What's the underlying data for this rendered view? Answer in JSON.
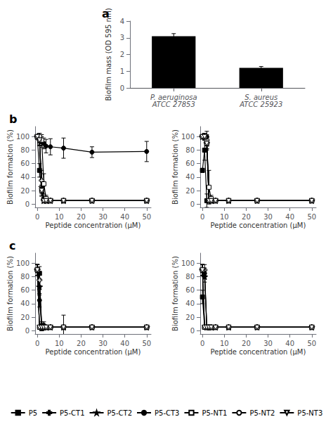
{
  "chart_data": [
    {
      "type": "bar",
      "title": "a",
      "categories": [
        "P. aeruginosa\nATCC 27853",
        "S. aureus\nATCC 25923"
      ],
      "values": [
        3.1,
        1.2
      ],
      "errors": [
        0.15,
        0.08
      ],
      "color": "#000000",
      "ylabel": "Biofilm mass (OD 595 nm)",
      "ylim": [
        0,
        4
      ],
      "yticks": [
        0,
        1,
        2,
        3,
        4
      ],
      "grid": false
    },
    {
      "type": "line",
      "title": "b",
      "x": [
        0,
        1,
        2,
        3,
        4,
        6,
        12,
        25,
        50
      ],
      "xlabel": "Peptide concentration (μM)",
      "ylabel": "Biofilm formation (%)",
      "xlim": [
        -1,
        52
      ],
      "xticks": [
        0,
        10,
        20,
        30,
        40,
        50
      ],
      "ylim": [
        -5,
        115
      ],
      "yticks": [
        0,
        20,
        40,
        60,
        80,
        100
      ],
      "grid": false,
      "series": [
        {
          "name": "P5",
          "color": "#000000",
          "marker": "square",
          "line_style": "solid",
          "values": [
            100,
            50,
            20,
            7,
            5,
            5,
            5,
            5,
            5
          ],
          "errors": [
            3,
            10,
            8,
            3,
            2,
            2,
            2,
            2,
            2
          ]
        },
        {
          "name": "P5-CT1",
          "color": "#000000",
          "marker": "open plus",
          "line_style": "solid",
          "values": [
            100,
            95,
            35,
            7,
            5,
            5,
            5,
            5,
            5
          ],
          "errors": [
            3,
            8,
            15,
            3,
            2,
            2,
            2,
            2,
            2
          ]
        },
        {
          "name": "P5-CT2",
          "color": "#000000",
          "marker": "star",
          "line_style": "solid",
          "values": [
            100,
            95,
            25,
            5,
            5,
            5,
            5,
            5,
            5
          ],
          "errors": [
            3,
            8,
            10,
            3,
            2,
            2,
            2,
            2,
            2
          ]
        },
        {
          "name": "P5-CT3",
          "color": "#000000",
          "marker": "circle",
          "line_style": "solid",
          "values": [
            100,
            100,
            92,
            90,
            86,
            85,
            83,
            77,
            78
          ],
          "errors": [
            3,
            5,
            8,
            8,
            10,
            12,
            15,
            8,
            15
          ]
        },
        {
          "name": "P5-NT1",
          "color": "#000000",
          "marker": "open square",
          "line_style": "solid",
          "values": [
            100,
            100,
            95,
            30,
            8,
            5,
            5,
            5,
            5
          ],
          "errors": [
            3,
            5,
            8,
            15,
            5,
            3,
            2,
            2,
            2
          ]
        },
        {
          "name": "P5-NT2",
          "color": "#000000",
          "marker": "open circle",
          "line_style": "solid",
          "values": [
            100,
            95,
            20,
            5,
            5,
            5,
            5,
            5,
            5
          ],
          "errors": [
            3,
            8,
            8,
            3,
            2,
            2,
            2,
            2,
            2
          ]
        },
        {
          "name": "P5-NT3",
          "color": "#000000",
          "marker": "open triangle-down",
          "line_style": "solid",
          "values": [
            100,
            95,
            20,
            5,
            5,
            5,
            5,
            5,
            5
          ],
          "errors": [
            3,
            8,
            8,
            3,
            2,
            2,
            2,
            2,
            2
          ]
        }
      ]
    },
    {
      "type": "line",
      "x": [
        0,
        1,
        2,
        3,
        4,
        6,
        12,
        25,
        50
      ],
      "xlabel": "Peptide concentration (μM)",
      "ylabel": "Biofilm formation (%)",
      "xlim": [
        -1,
        52
      ],
      "xticks": [
        0,
        10,
        20,
        30,
        40,
        50
      ],
      "ylim": [
        -5,
        115
      ],
      "yticks": [
        0,
        20,
        40,
        60,
        80,
        100
      ],
      "grid": false,
      "series": [
        {
          "name": "P5",
          "color": "#000000",
          "marker": "square",
          "line_style": "solid",
          "values": [
            50,
            80,
            5,
            5,
            5,
            5,
            5,
            5,
            5
          ],
          "errors": [
            3,
            15,
            10,
            3,
            2,
            2,
            2,
            2,
            2
          ]
        },
        {
          "name": "P5-CT1",
          "color": "#000000",
          "marker": "open plus",
          "line_style": "solid",
          "values": [
            100,
            100,
            95,
            5,
            5,
            5,
            5,
            5,
            5
          ],
          "errors": [
            3,
            5,
            8,
            3,
            2,
            2,
            2,
            2,
            2
          ]
        },
        {
          "name": "P5-CT2",
          "color": "#000000",
          "marker": "star",
          "line_style": "solid",
          "values": [
            100,
            100,
            90,
            5,
            5,
            5,
            5,
            5,
            5
          ],
          "errors": [
            3,
            5,
            8,
            3,
            2,
            2,
            2,
            2,
            2
          ]
        },
        {
          "name": "P5-CT3",
          "color": "#000000",
          "marker": "circle",
          "line_style": "solid",
          "values": [
            100,
            100,
            100,
            5,
            5,
            5,
            5,
            5,
            5
          ],
          "errors": [
            3,
            5,
            8,
            3,
            2,
            2,
            2,
            2,
            2
          ]
        },
        {
          "name": "P5-NT1",
          "color": "#000000",
          "marker": "open square",
          "line_style": "solid",
          "values": [
            100,
            100,
            90,
            25,
            8,
            5,
            5,
            5,
            5
          ],
          "errors": [
            3,
            5,
            10,
            25,
            5,
            3,
            2,
            2,
            2
          ]
        },
        {
          "name": "P5-NT2",
          "color": "#000000",
          "marker": "open circle",
          "line_style": "solid",
          "values": [
            100,
            100,
            90,
            5,
            5,
            5,
            5,
            5,
            5
          ],
          "errors": [
            3,
            5,
            8,
            3,
            2,
            2,
            2,
            2,
            2
          ]
        },
        {
          "name": "P5-NT3",
          "color": "#000000",
          "marker": "open triangle-down",
          "line_style": "solid",
          "values": [
            100,
            100,
            90,
            5,
            5,
            5,
            5,
            5,
            5
          ],
          "errors": [
            3,
            5,
            8,
            3,
            2,
            2,
            2,
            2,
            2
          ]
        }
      ]
    },
    {
      "type": "line",
      "title": "c",
      "x": [
        0,
        1,
        2,
        3,
        4,
        6,
        12,
        25,
        50
      ],
      "xlabel": "Peptide concentration (μM)",
      "ylabel": "Biofilm formation (%)",
      "xlim": [
        -1,
        52
      ],
      "xticks": [
        0,
        10,
        20,
        30,
        40,
        50
      ],
      "ylim": [
        -5,
        115
      ],
      "yticks": [
        0,
        20,
        40,
        60,
        80,
        100
      ],
      "grid": false,
      "series": [
        {
          "name": "P5",
          "color": "#000000",
          "marker": "square",
          "line_style": "solid",
          "values": [
            90,
            85,
            5,
            5,
            5,
            5,
            5,
            5,
            5
          ],
          "errors": [
            8,
            10,
            5,
            3,
            2,
            2,
            2,
            2,
            2
          ]
        },
        {
          "name": "P5-CT1",
          "color": "#000000",
          "marker": "open plus",
          "line_style": "solid",
          "values": [
            90,
            75,
            5,
            5,
            5,
            5,
            5,
            5,
            5
          ],
          "errors": [
            8,
            8,
            5,
            3,
            2,
            2,
            2,
            2,
            2
          ]
        },
        {
          "name": "P5-CT2",
          "color": "#000000",
          "marker": "star",
          "line_style": "solid",
          "values": [
            90,
            65,
            5,
            5,
            5,
            5,
            5,
            5,
            5
          ],
          "errors": [
            8,
            12,
            5,
            3,
            2,
            2,
            2,
            2,
            2
          ]
        },
        {
          "name": "P5-CT3",
          "color": "#000000",
          "marker": "circle",
          "line_style": "solid",
          "values": [
            90,
            45,
            8,
            8,
            5,
            5,
            5,
            5,
            5
          ],
          "errors": [
            8,
            10,
            5,
            5,
            3,
            3,
            18,
            3,
            2
          ]
        },
        {
          "name": "P5-NT1",
          "color": "#000000",
          "marker": "open square",
          "line_style": "solid",
          "values": [
            90,
            5,
            5,
            5,
            5,
            5,
            5,
            5,
            5
          ],
          "errors": [
            8,
            3,
            3,
            2,
            2,
            2,
            2,
            2,
            2
          ]
        },
        {
          "name": "P5-NT2",
          "color": "#000000",
          "marker": "open circle",
          "line_style": "solid",
          "values": [
            90,
            5,
            5,
            5,
            5,
            5,
            5,
            5,
            5
          ],
          "errors": [
            8,
            3,
            3,
            2,
            2,
            2,
            2,
            2,
            2
          ]
        },
        {
          "name": "P5-NT3",
          "color": "#000000",
          "marker": "open triangle-down",
          "line_style": "solid",
          "values": [
            90,
            5,
            5,
            5,
            5,
            5,
            5,
            5,
            5
          ],
          "errors": [
            8,
            3,
            3,
            2,
            2,
            2,
            2,
            2,
            2
          ]
        }
      ]
    },
    {
      "type": "line",
      "legend": "bottom",
      "x": [
        0,
        1,
        2,
        3,
        4,
        6,
        12,
        25,
        50
      ],
      "xlabel": "Peptide concentration (μM)",
      "ylabel": "Biofilm formation (%)",
      "xlim": [
        -1,
        52
      ],
      "xticks": [
        0,
        10,
        20,
        30,
        40,
        50
      ],
      "ylim": [
        -5,
        115
      ],
      "yticks": [
        0,
        20,
        40,
        60,
        80,
        100
      ],
      "grid": false,
      "series": [
        {
          "name": "P5",
          "color": "#000000",
          "marker": "square",
          "line_style": "solid",
          "values": [
            50,
            5,
            5,
            5,
            5,
            5,
            5,
            5,
            5
          ],
          "errors": [
            10,
            3,
            2,
            2,
            2,
            2,
            2,
            2,
            2
          ]
        },
        {
          "name": "P5-CT1",
          "color": "#000000",
          "marker": "open plus",
          "line_style": "solid",
          "values": [
            90,
            90,
            5,
            5,
            5,
            5,
            5,
            5,
            5
          ],
          "errors": [
            8,
            8,
            3,
            2,
            2,
            2,
            2,
            2,
            2
          ]
        },
        {
          "name": "P5-CT2",
          "color": "#000000",
          "marker": "star",
          "line_style": "solid",
          "values": [
            90,
            80,
            5,
            5,
            5,
            5,
            5,
            5,
            5
          ],
          "errors": [
            8,
            8,
            3,
            2,
            2,
            2,
            2,
            2,
            2
          ]
        },
        {
          "name": "P5-CT3",
          "color": "#000000",
          "marker": "circle",
          "line_style": "solid",
          "values": [
            90,
            85,
            5,
            5,
            5,
            5,
            5,
            5,
            5
          ],
          "errors": [
            8,
            8,
            3,
            2,
            2,
            2,
            2,
            2,
            2
          ]
        },
        {
          "name": "P5-NT1",
          "color": "#000000",
          "marker": "open square",
          "line_style": "solid",
          "values": [
            90,
            5,
            5,
            5,
            5,
            5,
            5,
            5,
            5
          ],
          "errors": [
            8,
            3,
            2,
            2,
            2,
            2,
            2,
            2,
            2
          ]
        },
        {
          "name": "P5-NT2",
          "color": "#000000",
          "marker": "open circle",
          "line_style": "solid",
          "values": [
            90,
            5,
            5,
            5,
            5,
            5,
            5,
            5,
            5
          ],
          "errors": [
            8,
            3,
            2,
            2,
            2,
            2,
            2,
            2,
            2
          ]
        },
        {
          "name": "P5-NT3",
          "color": "#000000",
          "marker": "open triangle-down",
          "line_style": "solid",
          "values": [
            90,
            5,
            5,
            5,
            5,
            5,
            5,
            5,
            5
          ],
          "errors": [
            8,
            3,
            2,
            2,
            2,
            2,
            2,
            2,
            2
          ]
        }
      ]
    }
  ]
}
